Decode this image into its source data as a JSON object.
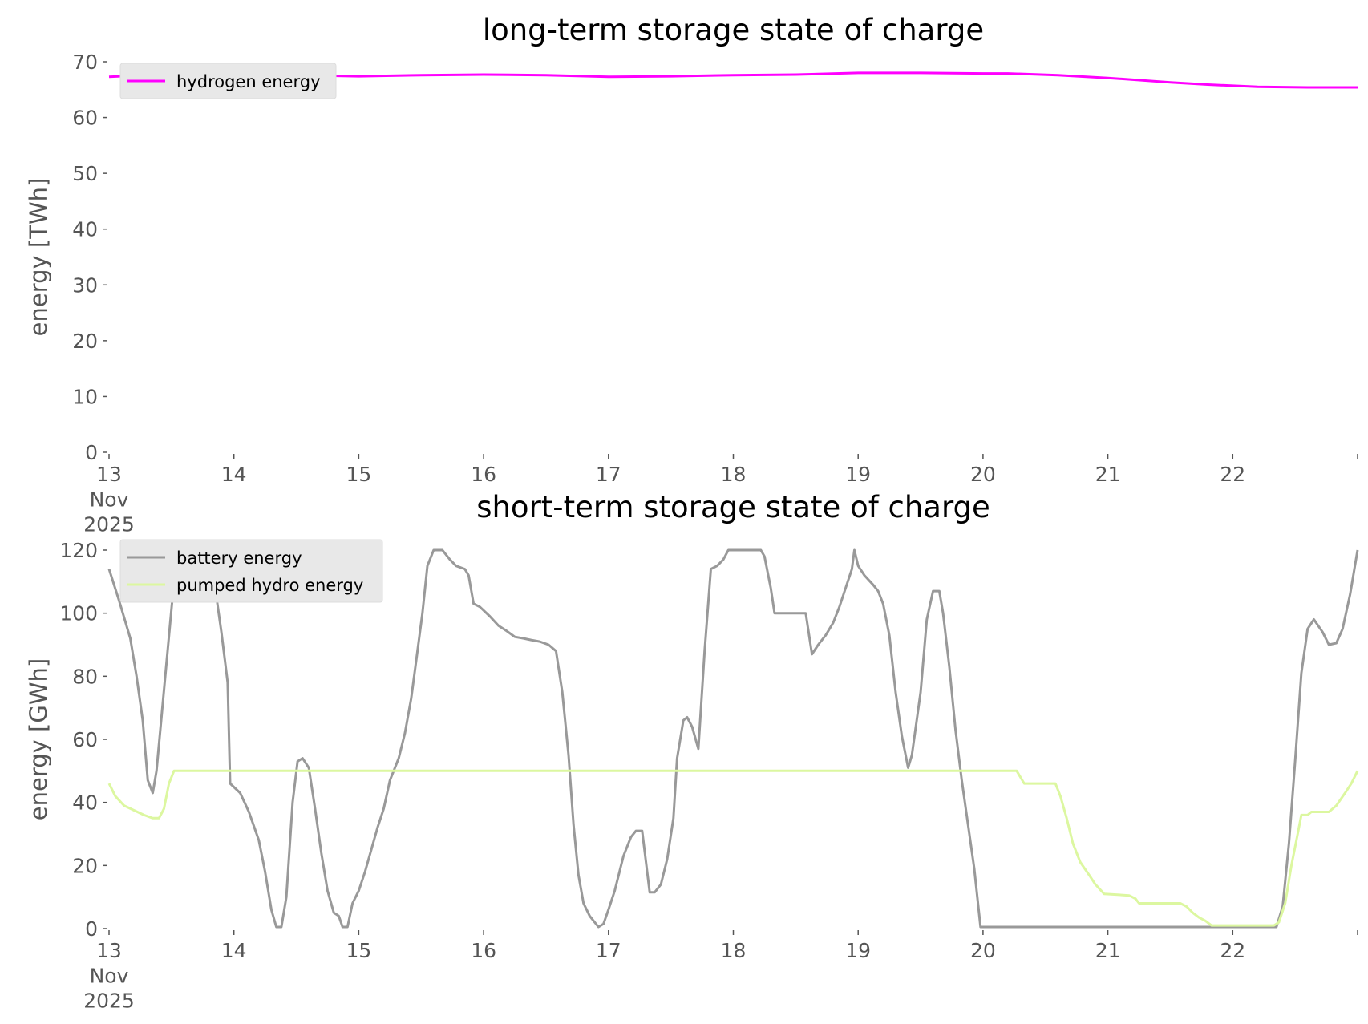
{
  "chart_data": [
    {
      "type": "line",
      "title": "long-term storage state of charge",
      "ylabel": "energy [TWh]",
      "xlim": [
        13,
        23
      ],
      "xticks": [
        {
          "value": 13,
          "label": "13\nNov\n2025"
        },
        14,
        15,
        16,
        17,
        18,
        19,
        20,
        21,
        22
      ],
      "ylim": [
        0,
        70
      ],
      "yticks": [
        0,
        10,
        20,
        30,
        40,
        50,
        60,
        70
      ],
      "legend": "upper left",
      "series": [
        {
          "name": "hydrogen energy",
          "color": "#ff00ff",
          "x": [
            13,
            13.5,
            14,
            14.3,
            15,
            15.5,
            16,
            16.5,
            17,
            17.5,
            18,
            18.5,
            19,
            19.5,
            20,
            20.2,
            20.6,
            21,
            21.5,
            21.8,
            22.2,
            22.6,
            23
          ],
          "values": [
            67.3,
            67.8,
            67.9,
            67.7,
            67.4,
            67.6,
            67.7,
            67.6,
            67.3,
            67.4,
            67.6,
            67.7,
            68,
            68,
            67.9,
            67.9,
            67.6,
            67.1,
            66.3,
            65.9,
            65.5,
            65.4,
            65.4
          ]
        }
      ]
    },
    {
      "type": "line",
      "title": "short-term storage state of charge",
      "ylabel": "energy [GWh]",
      "xlim": [
        13,
        23
      ],
      "xticks": [
        {
          "value": 13,
          "label": "13\nNov\n2025"
        },
        14,
        15,
        16,
        17,
        18,
        19,
        20,
        21,
        22
      ],
      "ylim": [
        0,
        120
      ],
      "yticks": [
        0,
        20,
        40,
        60,
        80,
        100,
        120
      ],
      "legend": "upper left",
      "series": [
        {
          "name": "battery energy",
          "color": "#999999",
          "x": [
            13,
            13.08,
            13.17,
            13.22,
            13.27,
            13.31,
            13.35,
            13.38,
            13.45,
            13.52,
            13.57,
            13.78,
            13.85,
            13.9,
            13.95,
            13.97,
            14.05,
            14.12,
            14.2,
            14.25,
            14.3,
            14.34,
            14.38,
            14.42,
            14.47,
            14.51,
            14.55,
            14.6,
            14.65,
            14.7,
            14.75,
            14.8,
            14.84,
            14.87,
            14.91,
            14.95,
            15,
            15.05,
            15.1,
            15.15,
            15.2,
            15.25,
            15.32,
            15.37,
            15.42,
            15.47,
            15.51,
            15.55,
            15.6,
            15.67,
            15.73,
            15.78,
            15.85,
            15.88,
            15.92,
            15.97,
            16.05,
            16.12,
            16.18,
            16.25,
            16.32,
            16.38,
            16.45,
            16.52,
            16.58,
            16.63,
            16.68,
            16.72,
            16.76,
            16.8,
            16.85,
            16.88,
            16.92,
            16.96,
            17,
            17.05,
            17.12,
            17.18,
            17.22,
            17.27,
            17.33,
            17.37,
            17.42,
            17.47,
            17.52,
            17.55,
            17.6,
            17.63,
            17.67,
            17.72,
            17.77,
            17.82,
            17.87,
            17.92,
            17.96,
            18.22,
            18.25,
            18.3,
            18.33,
            18.58,
            18.63,
            18.68,
            18.74,
            18.8,
            18.85,
            18.9,
            18.95,
            18.97,
            19,
            19.05,
            19.12,
            19.16,
            19.2,
            19.25,
            19.3,
            19.35,
            19.4,
            19.43,
            19.5,
            19.55,
            19.6,
            19.65,
            19.68,
            19.73,
            19.78,
            19.83,
            19.88,
            19.93,
            19.98,
            22.35,
            22.4,
            22.45,
            22.5,
            22.55,
            22.6,
            22.65,
            22.72,
            22.77,
            22.83,
            22.88,
            22.94,
            23
          ],
          "values": [
            114,
            104,
            92,
            80,
            66,
            47,
            43,
            50,
            80,
            110,
            120,
            120,
            108,
            94,
            78,
            46,
            43,
            37,
            28,
            18,
            6,
            0.5,
            0.5,
            10,
            40,
            53,
            54,
            51,
            38,
            24,
            12,
            5,
            4,
            0.5,
            0.5,
            8,
            12,
            18,
            25,
            32,
            38,
            47,
            54,
            62,
            73,
            88,
            100,
            115,
            120,
            120,
            117,
            115,
            114,
            112,
            103,
            102,
            99,
            96,
            94.5,
            92.5,
            92,
            91.5,
            91,
            90,
            88,
            75,
            55,
            33,
            17,
            8,
            4,
            2.5,
            0.5,
            1.5,
            6,
            12,
            23,
            29,
            31,
            31,
            11.5,
            11.5,
            14,
            22,
            35,
            54,
            66,
            67,
            64,
            57,
            88,
            114,
            115,
            117,
            120,
            120,
            118,
            108,
            100,
            100,
            87,
            90,
            93,
            97,
            102,
            108,
            114,
            120,
            115,
            112,
            109,
            107,
            103,
            93,
            75,
            61,
            51,
            55,
            75,
            98,
            107,
            107,
            100,
            83,
            63,
            47,
            33,
            19,
            0.5,
            0.5,
            7,
            27,
            53,
            81,
            95,
            98,
            94,
            90,
            90.5,
            95,
            106,
            120
          ]
        },
        {
          "name": "pumped hydro energy",
          "color": "#dcf7a0",
          "x": [
            13,
            13.05,
            13.12,
            13.2,
            13.28,
            13.35,
            13.4,
            13.44,
            13.48,
            13.52,
            20.27,
            20.33,
            20.58,
            20.62,
            20.67,
            20.72,
            20.78,
            20.85,
            20.9,
            20.97,
            21.17,
            21.22,
            21.25,
            21.58,
            21.63,
            21.68,
            21.73,
            21.78,
            21.83,
            22.33,
            22.37,
            22.42,
            22.47,
            22.52,
            22.55,
            22.6,
            22.63,
            22.77,
            22.83,
            22.9,
            22.95,
            23
          ],
          "values": [
            46,
            42,
            39,
            37.5,
            36,
            35,
            35,
            38,
            46,
            50,
            50,
            46,
            46,
            42,
            35,
            27,
            21,
            17,
            14,
            11,
            10.5,
            9.5,
            8,
            8,
            7,
            5,
            3.5,
            2.5,
            1,
            1,
            2,
            8,
            20,
            30,
            36,
            36,
            37,
            37,
            39,
            43,
            46,
            50
          ]
        }
      ]
    }
  ]
}
